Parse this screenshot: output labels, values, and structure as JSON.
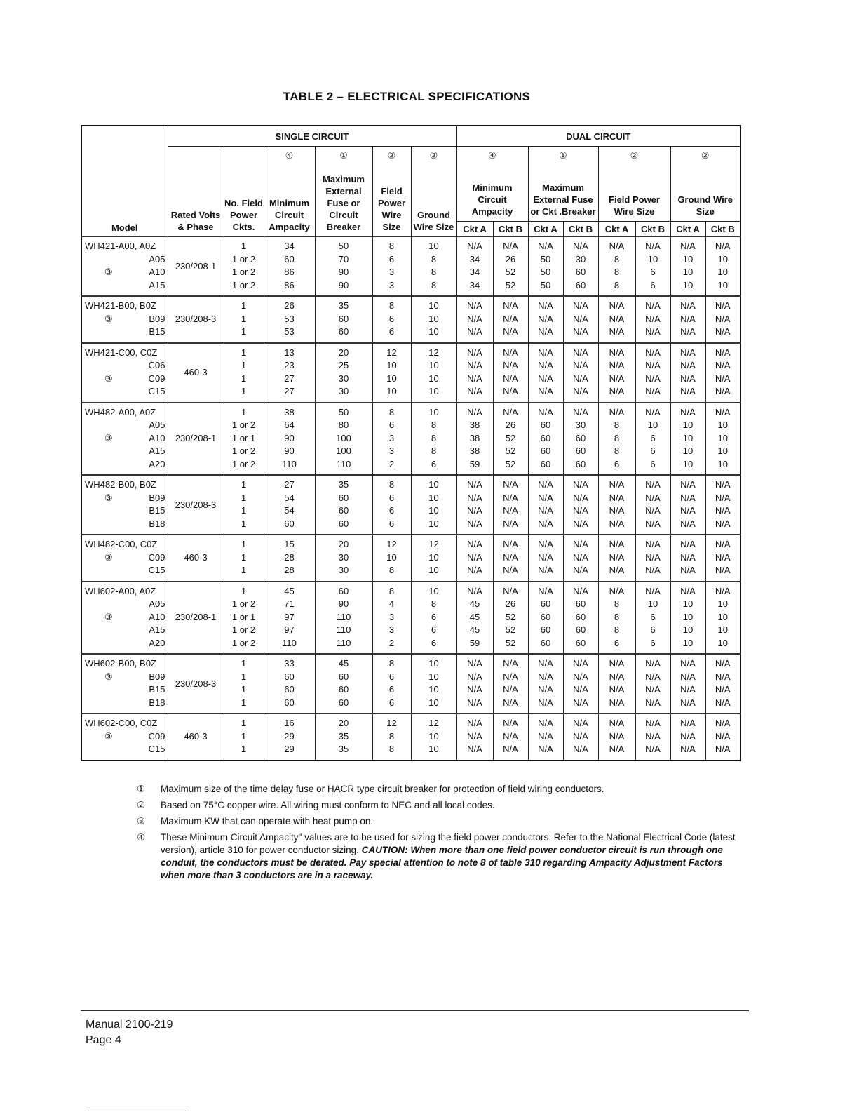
{
  "title": "TABLE 2 – ELECTRICAL SPECIFICATIONS",
  "header": {
    "model": "Model",
    "single_circuit": "SINGLE CIRCUIT",
    "dual_circuit": "DUAL CIRCUIT",
    "single_cols": [
      {
        "note": "",
        "label": "Rated Volts & Phase"
      },
      {
        "note": "",
        "label": "No. Field Power Ckts."
      },
      {
        "note": "④",
        "label": "Minimum Circuit Ampacity"
      },
      {
        "note": "①",
        "label": "Maximum External Fuse or Circuit Breaker"
      },
      {
        "note": "②",
        "label": "Field Power Wire Size"
      },
      {
        "note": "②",
        "label": "Ground Wire Size"
      }
    ],
    "dual_cols": [
      {
        "note": "④",
        "label": "Minimum Circuit Ampacity"
      },
      {
        "note": "①",
        "label": "Maximum External Fuse or Ckt .Breaker"
      },
      {
        "note": "②",
        "label": "Field Power Wire Size"
      },
      {
        "note": "②",
        "label": "Ground Wire Size"
      }
    ],
    "ckt_a": "Ckt A",
    "ckt_b": "Ckt B"
  },
  "groups": [
    {
      "models": [
        "WH421-A00, A0Z",
        "A05",
        "A10",
        "A15"
      ],
      "note_line": 2,
      "note": "③",
      "volts": "230/208-1",
      "rows": [
        [
          "1",
          "34",
          "50",
          "8",
          "10",
          "N/A",
          "N/A",
          "N/A",
          "N/A",
          "N/A",
          "N/A",
          "N/A",
          "N/A"
        ],
        [
          "1 or 2",
          "60",
          "70",
          "6",
          "8",
          "34",
          "26",
          "50",
          "30",
          "8",
          "10",
          "10",
          "10"
        ],
        [
          "1 or 2",
          "86",
          "90",
          "3",
          "8",
          "34",
          "52",
          "50",
          "60",
          "8",
          "6",
          "10",
          "10"
        ],
        [
          "1 or 2",
          "86",
          "90",
          "3",
          "8",
          "34",
          "52",
          "50",
          "60",
          "8",
          "6",
          "10",
          "10"
        ]
      ]
    },
    {
      "models": [
        "WH421-B00, B0Z",
        "B09",
        "B15"
      ],
      "note_line": 1,
      "note": "③",
      "volts": "230/208-3",
      "rows": [
        [
          "1",
          "26",
          "35",
          "8",
          "10",
          "N/A",
          "N/A",
          "N/A",
          "N/A",
          "N/A",
          "N/A",
          "N/A",
          "N/A"
        ],
        [
          "1",
          "53",
          "60",
          "6",
          "10",
          "N/A",
          "N/A",
          "N/A",
          "N/A",
          "N/A",
          "N/A",
          "N/A",
          "N/A"
        ],
        [
          "1",
          "53",
          "60",
          "6",
          "10",
          "N/A",
          "N/A",
          "N/A",
          "N/A",
          "N/A",
          "N/A",
          "N/A",
          "N/A"
        ]
      ]
    },
    {
      "models": [
        "WH421-C00, C0Z",
        "C06",
        "C09",
        "C15"
      ],
      "note_line": 2,
      "note": "③",
      "volts": "460-3",
      "rows": [
        [
          "1",
          "13",
          "20",
          "12",
          "12",
          "N/A",
          "N/A",
          "N/A",
          "N/A",
          "N/A",
          "N/A",
          "N/A",
          "N/A"
        ],
        [
          "1",
          "23",
          "25",
          "10",
          "10",
          "N/A",
          "N/A",
          "N/A",
          "N/A",
          "N/A",
          "N/A",
          "N/A",
          "N/A"
        ],
        [
          "1",
          "27",
          "30",
          "10",
          "10",
          "N/A",
          "N/A",
          "N/A",
          "N/A",
          "N/A",
          "N/A",
          "N/A",
          "N/A"
        ],
        [
          "1",
          "27",
          "30",
          "10",
          "10",
          "N/A",
          "N/A",
          "N/A",
          "N/A",
          "N/A",
          "N/A",
          "N/A",
          "N/A"
        ]
      ]
    },
    {
      "models": [
        "WH482-A00, A0Z",
        "A05",
        "A10",
        "A15",
        "A20"
      ],
      "note_line": 2,
      "note": "③",
      "volts": "230/208-1",
      "rows": [
        [
          "1",
          "38",
          "50",
          "8",
          "10",
          "N/A",
          "N/A",
          "N/A",
          "N/A",
          "N/A",
          "N/A",
          "N/A",
          "N/A"
        ],
        [
          "1 or 2",
          "64",
          "80",
          "6",
          "8",
          "38",
          "26",
          "60",
          "30",
          "8",
          "10",
          "10",
          "10"
        ],
        [
          "1 or 1",
          "90",
          "100",
          "3",
          "8",
          "38",
          "52",
          "60",
          "60",
          "8",
          "6",
          "10",
          "10"
        ],
        [
          "1 or 2",
          "90",
          "100",
          "3",
          "8",
          "38",
          "52",
          "60",
          "60",
          "8",
          "6",
          "10",
          "10"
        ],
        [
          "1 or 2",
          "110",
          "110",
          "2",
          "6",
          "59",
          "52",
          "60",
          "60",
          "6",
          "6",
          "10",
          "10"
        ]
      ]
    },
    {
      "models": [
        "WH482-B00, B0Z",
        "B09",
        "B15",
        "B18"
      ],
      "note_line": 1,
      "note": "③",
      "volts": "230/208-3",
      "rows": [
        [
          "1",
          "27",
          "35",
          "8",
          "10",
          "N/A",
          "N/A",
          "N/A",
          "N/A",
          "N/A",
          "N/A",
          "N/A",
          "N/A"
        ],
        [
          "1",
          "54",
          "60",
          "6",
          "10",
          "N/A",
          "N/A",
          "N/A",
          "N/A",
          "N/A",
          "N/A",
          "N/A",
          "N/A"
        ],
        [
          "1",
          "54",
          "60",
          "6",
          "10",
          "N/A",
          "N/A",
          "N/A",
          "N/A",
          "N/A",
          "N/A",
          "N/A",
          "N/A"
        ],
        [
          "1",
          "60",
          "60",
          "6",
          "10",
          "N/A",
          "N/A",
          "N/A",
          "N/A",
          "N/A",
          "N/A",
          "N/A",
          "N/A"
        ]
      ]
    },
    {
      "models": [
        "WH482-C00, C0Z",
        "C09",
        "C15"
      ],
      "note_line": 1,
      "note": "③",
      "volts": "460-3",
      "rows": [
        [
          "1",
          "15",
          "20",
          "12",
          "12",
          "N/A",
          "N/A",
          "N/A",
          "N/A",
          "N/A",
          "N/A",
          "N/A",
          "N/A"
        ],
        [
          "1",
          "28",
          "30",
          "10",
          "10",
          "N/A",
          "N/A",
          "N/A",
          "N/A",
          "N/A",
          "N/A",
          "N/A",
          "N/A"
        ],
        [
          "1",
          "28",
          "30",
          "8",
          "10",
          "N/A",
          "N/A",
          "N/A",
          "N/A",
          "N/A",
          "N/A",
          "N/A",
          "N/A"
        ]
      ]
    },
    {
      "models": [
        "WH602-A00, A0Z",
        "A05",
        "A10",
        "A15",
        "A20"
      ],
      "note_line": 2,
      "note": "③",
      "volts": "230/208-1",
      "rows": [
        [
          "1",
          "45",
          "60",
          "8",
          "10",
          "N/A",
          "N/A",
          "N/A",
          "N/A",
          "N/A",
          "N/A",
          "N/A",
          "N/A"
        ],
        [
          "1 or 2",
          "71",
          "90",
          "4",
          "8",
          "45",
          "26",
          "60",
          "60",
          "8",
          "10",
          "10",
          "10"
        ],
        [
          "1 or 1",
          "97",
          "110",
          "3",
          "6",
          "45",
          "52",
          "60",
          "60",
          "8",
          "6",
          "10",
          "10"
        ],
        [
          "1 or 2",
          "97",
          "110",
          "3",
          "6",
          "45",
          "52",
          "60",
          "60",
          "8",
          "6",
          "10",
          "10"
        ],
        [
          "1 or 2",
          "110",
          "110",
          "2",
          "6",
          "59",
          "52",
          "60",
          "60",
          "6",
          "6",
          "10",
          "10"
        ]
      ]
    },
    {
      "models": [
        "WH602-B00, B0Z",
        "B09",
        "B15",
        "B18"
      ],
      "note_line": 1,
      "note": "③",
      "volts": "230/208-3",
      "rows": [
        [
          "1",
          "33",
          "45",
          "8",
          "10",
          "N/A",
          "N/A",
          "N/A",
          "N/A",
          "N/A",
          "N/A",
          "N/A",
          "N/A"
        ],
        [
          "1",
          "60",
          "60",
          "6",
          "10",
          "N/A",
          "N/A",
          "N/A",
          "N/A",
          "N/A",
          "N/A",
          "N/A",
          "N/A"
        ],
        [
          "1",
          "60",
          "60",
          "6",
          "10",
          "N/A",
          "N/A",
          "N/A",
          "N/A",
          "N/A",
          "N/A",
          "N/A",
          "N/A"
        ],
        [
          "1",
          "60",
          "60",
          "6",
          "10",
          "N/A",
          "N/A",
          "N/A",
          "N/A",
          "N/A",
          "N/A",
          "N/A",
          "N/A"
        ]
      ]
    },
    {
      "models": [
        "WH602-C00, C0Z",
        "C09",
        "C15"
      ],
      "note_line": 1,
      "note": "③",
      "volts": "460-3",
      "rows": [
        [
          "1",
          "16",
          "20",
          "12",
          "12",
          "N/A",
          "N/A",
          "N/A",
          "N/A",
          "N/A",
          "N/A",
          "N/A",
          "N/A"
        ],
        [
          "1",
          "29",
          "35",
          "8",
          "10",
          "N/A",
          "N/A",
          "N/A",
          "N/A",
          "N/A",
          "N/A",
          "N/A",
          "N/A"
        ],
        [
          "1",
          "29",
          "35",
          "8",
          "10",
          "N/A",
          "N/A",
          "N/A",
          "N/A",
          "N/A",
          "N/A",
          "N/A",
          "N/A"
        ]
      ]
    }
  ],
  "footnotes": [
    {
      "sym": "①",
      "text": "Maximum size of the time delay fuse or HACR type circuit breaker for protection of field wiring conductors."
    },
    {
      "sym": "②",
      "text": "Based on 75°C copper wire.  All wiring must conform to NEC and all local codes."
    },
    {
      "sym": "③",
      "text": "Maximum KW that can operate with heat pump on."
    },
    {
      "sym": "④",
      "text": "These Minimum Circuit Ampacity\" values are to be used for sizing the field power conductors.  Refer to the National Electrical Code (latest version), article 310 for power conductor sizing.  ",
      "emphasis": "CAUTION:  When more than one field power conductor circuit is run through one conduit, the conductors must be derated.  Pay special attention to note 8 of table 310 regarding Ampacity Adjustment Factors when more than 3 conductors are in a raceway."
    }
  ],
  "footer": {
    "manual": "Manual   2100-219",
    "page": "Page   4"
  }
}
